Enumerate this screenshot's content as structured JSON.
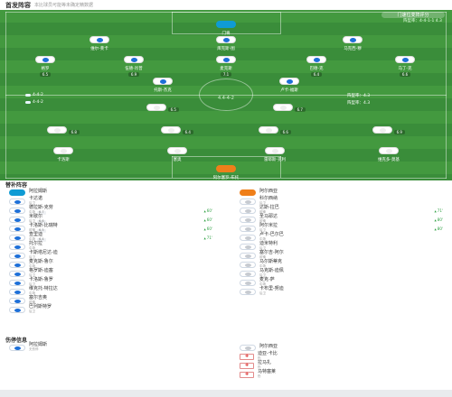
{
  "header": {
    "title": "首发阵容",
    "source": "本比球员可能等未确定精数据"
  },
  "pitch": {
    "toggle": "门速位变阵评分",
    "home_formation": "阵型率：4-4-1-1\n4.3",
    "away_formation": "阵型率：4-4-1-1\n4.3",
    "mid_label": "4.4-4-2",
    "home_team_row": [
      "4-4-2",
      "4-4-2"
    ],
    "away_team_row": [
      "阵型率：4.3",
      "阵型率：4.3"
    ],
    "players": [
      {
        "id": "gk-home",
        "name": "门将",
        "rating": "7.0",
        "type": "gk-home"
      },
      {
        "id": "h1",
        "name": "维尔-莱卡",
        "rating": "6.7",
        "type": "blue"
      },
      {
        "id": "h2",
        "name": "库克斯-图",
        "rating": "6.8",
        "type": "blue"
      },
      {
        "id": "h3",
        "name": "马克西-穆",
        "rating": "6.6",
        "type": "blue"
      },
      {
        "id": "h4",
        "name": "格罗",
        "rating": "6.5",
        "type": "blue",
        "evt": "61'"
      },
      {
        "id": "h5",
        "name": "伍德-肖普",
        "rating": "6.9",
        "type": "blue",
        "evt": "60'"
      },
      {
        "id": "h6",
        "name": "麦克斯",
        "rating": "7.1",
        "type": "blue",
        "evt": "60'"
      },
      {
        "id": "h7",
        "name": "巴德-克",
        "rating": "6.4",
        "type": "blue",
        "evt": "60'"
      },
      {
        "id": "h8",
        "name": "马丁-克",
        "rating": "6.6",
        "type": "blue"
      },
      {
        "id": "h9",
        "name": "托斯-杰克",
        "rating": "6.8",
        "type": "blue",
        "evt": "71'"
      },
      {
        "id": "h10",
        "name": "卢卡-福斯",
        "rating": "7.0",
        "type": "blue"
      },
      {
        "id": "a1",
        "name": "阿兰",
        "rating": "6.5",
        "type": "white",
        "evt": "80'"
      },
      {
        "id": "a2",
        "name": "维尔-克劳",
        "rating": "6.7",
        "type": "white"
      },
      {
        "id": "a3",
        "name": "丹尼斯",
        "rating": "6.8",
        "type": "white",
        "evt": "71'"
      },
      {
        "id": "a4",
        "name": "米罗德",
        "rating": "6.4",
        "type": "white",
        "evt": "80'"
      },
      {
        "id": "a5",
        "name": "塞科",
        "rating": "6.6",
        "type": "white"
      },
      {
        "id": "a6",
        "name": "菲尔-索",
        "rating": "6.9",
        "type": "white"
      },
      {
        "id": "a7",
        "name": "卡洛斯",
        "rating": "6.5",
        "type": "white",
        "evt": "66'"
      },
      {
        "id": "a8",
        "name": "塞奥",
        "rating": "6.7",
        "type": "white",
        "evt": "80'"
      },
      {
        "id": "a9",
        "name": "雷耶斯-克利",
        "rating": "7.0",
        "type": "white"
      },
      {
        "id": "a10",
        "name": "维克多-莫基",
        "rating": "6.8",
        "type": "white"
      },
      {
        "id": "gk-away",
        "name": "阿尔塞罗-布托",
        "rating": "6.9",
        "type": "gk-away"
      }
    ]
  },
  "subs": {
    "title": "替补阵容",
    "home": [
      {
        "name": "阿拉姆斯",
        "meta": "",
        "gk": "home"
      },
      {
        "name": "卡达诺",
        "meta": "后卫"
      },
      {
        "name": "德拉斯-克劳",
        "meta": "中场",
        "rating": "6.7",
        "time": "60'"
      },
      {
        "name": "米歇尔",
        "meta": "后卫",
        "rating": "6.6",
        "time": "60'"
      },
      {
        "name": "卡洛斯-比瑞特",
        "meta": "前锋",
        "rating": "6.5",
        "time": "60'"
      },
      {
        "name": "查里迪",
        "meta": "中场",
        "rating": "6.4",
        "time": "71'"
      },
      {
        "name": "托尔拉",
        "meta": "中场"
      },
      {
        "name": "卡斯塔尼达-迪",
        "meta": "后卫"
      },
      {
        "name": "麦克斯-鲁尔",
        "meta": "中场"
      },
      {
        "name": "格罗斯-迪塞",
        "meta": "后卫"
      },
      {
        "name": "卡洛斯-鲁罗",
        "meta": "后卫"
      },
      {
        "name": "维克托-特拉达",
        "meta": "中场"
      },
      {
        "name": "塞尔吉奥",
        "meta": "前锋"
      },
      {
        "name": "巴列斯特罗",
        "meta": "后卫"
      }
    ],
    "away": [
      {
        "name": "阿尔西亚",
        "meta": "",
        "gk": "away"
      },
      {
        "name": "科尔西纳",
        "meta": "后卫"
      },
      {
        "name": "达斯-拉巴",
        "meta": "前锋",
        "time": "71'"
      },
      {
        "name": "圣马耶达",
        "meta": "前锋",
        "time": "80'"
      },
      {
        "name": "阿尔米拉",
        "meta": "后卫",
        "time": "80'"
      },
      {
        "name": "卢卡-巴尔巴",
        "meta": "中场"
      },
      {
        "name": "迪米特利",
        "meta": "后卫"
      },
      {
        "name": "塞尔吉-阿尔",
        "meta": "前锋"
      },
      {
        "name": "马尔斯蒂克",
        "meta": "中场"
      },
      {
        "name": "马克斯-迪佩",
        "meta": "后卫"
      },
      {
        "name": "麦克-萨",
        "meta": "中场"
      },
      {
        "name": "卡布里-努迪",
        "meta": "后卫"
      }
    ]
  },
  "injuries": {
    "title": "伤停信息",
    "home": [
      {
        "name": "阿拉姆斯",
        "meta": "无伤停"
      }
    ],
    "away": [
      {
        "name": "阿尔西亚",
        "meta": ""
      },
      {
        "name": "迪亚-卡比",
        "meta": "伤"
      },
      {
        "name": "拉马扎",
        "meta": "伤"
      },
      {
        "name": "马特塞莱",
        "meta": "伤"
      }
    ]
  }
}
